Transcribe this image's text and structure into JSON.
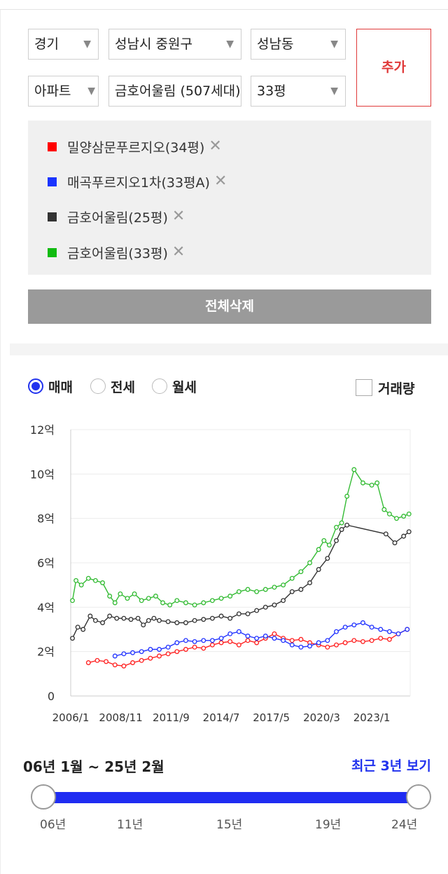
{
  "filters": {
    "region": "경기",
    "city": "성남시 중원구",
    "dong": "성남동",
    "type": "아파트",
    "complex": "금호어울림 (507세대)",
    "size": "33평",
    "add_label": "추가"
  },
  "selected": [
    {
      "label": "밀양삼문푸르지오(34평)",
      "color": "#ff0000"
    },
    {
      "label": "매곡푸르지오1차(33평A)",
      "color": "#1a34ff"
    },
    {
      "label": "금호어울림(25평)",
      "color": "#333333"
    },
    {
      "label": "금호어울림(33평)",
      "color": "#11bb11"
    }
  ],
  "delete_all_label": "전체삭제",
  "trade_types": [
    "매매",
    "전세",
    "월세"
  ],
  "active_trade": "매매",
  "volume_label": "거래량",
  "chart_data": {
    "type": "line",
    "ylim": [
      0,
      12
    ],
    "yticks": [
      "0",
      "2억",
      "4억",
      "6억",
      "8억",
      "10억",
      "12억"
    ],
    "xticks": [
      "2006/1",
      "2008/11",
      "2011/9",
      "2014/7",
      "2017/5",
      "2020/3",
      "2023/1"
    ],
    "xlim": [
      2006.0,
      2025.17
    ],
    "grid": true,
    "series": [
      {
        "name": "밀양삼문푸르지오(34평)",
        "color": "#ff2020",
        "x": [
          2007.0,
          2007.5,
          2008.0,
          2008.5,
          2009.0,
          2009.5,
          2010.0,
          2010.5,
          2011.0,
          2011.5,
          2012.0,
          2012.5,
          2013.0,
          2013.5,
          2014.0,
          2014.5,
          2015.0,
          2015.5,
          2016.0,
          2016.5,
          2017.0,
          2017.5,
          2018.0,
          2018.5,
          2019.0,
          2019.5,
          2020.0,
          2020.5,
          2021.0,
          2021.5,
          2022.0,
          2022.5,
          2023.0,
          2023.5,
          2024.0,
          2024.5,
          2025.0
        ],
        "y": [
          1.5,
          1.6,
          1.55,
          1.4,
          1.35,
          1.5,
          1.6,
          1.7,
          1.8,
          1.9,
          2.0,
          2.1,
          2.2,
          2.15,
          2.3,
          2.4,
          2.45,
          2.3,
          2.5,
          2.4,
          2.6,
          2.8,
          2.6,
          2.5,
          2.55,
          2.4,
          2.3,
          2.2,
          2.3,
          2.4,
          2.5,
          2.45,
          2.5,
          2.6,
          2.55,
          2.8,
          3.0
        ]
      },
      {
        "name": "매곡푸르지오1차(33평A)",
        "color": "#2233ff",
        "x": [
          2008.5,
          2009.0,
          2009.5,
          2010.0,
          2010.5,
          2011.0,
          2011.5,
          2012.0,
          2012.5,
          2013.0,
          2013.5,
          2014.0,
          2014.5,
          2015.0,
          2015.5,
          2016.0,
          2016.5,
          2017.0,
          2017.5,
          2018.0,
          2018.5,
          2019.0,
          2019.5,
          2020.0,
          2020.5,
          2021.0,
          2021.5,
          2022.0,
          2022.5,
          2023.0,
          2023.5,
          2024.0,
          2024.5,
          2025.0
        ],
        "y": [
          1.8,
          1.9,
          1.95,
          2.0,
          2.1,
          2.1,
          2.2,
          2.4,
          2.5,
          2.45,
          2.5,
          2.5,
          2.6,
          2.8,
          2.9,
          2.7,
          2.6,
          2.7,
          2.6,
          2.5,
          2.3,
          2.2,
          2.25,
          2.4,
          2.5,
          2.9,
          3.1,
          3.2,
          3.3,
          3.1,
          3.0,
          2.9,
          2.8,
          3.0
        ]
      },
      {
        "name": "금호어울림(25평)",
        "color": "#333333",
        "x": [
          2006.1,
          2006.4,
          2006.7,
          2007.1,
          2007.4,
          2007.8,
          2008.2,
          2008.6,
          2009.0,
          2009.4,
          2009.8,
          2010.1,
          2010.4,
          2010.7,
          2011.0,
          2011.5,
          2012.0,
          2012.5,
          2013.0,
          2013.5,
          2014.0,
          2014.5,
          2015.0,
          2015.5,
          2016.0,
          2016.5,
          2017.0,
          2017.5,
          2018.0,
          2018.5,
          2019.0,
          2019.5,
          2020.0,
          2020.5,
          2021.0,
          2021.3,
          2021.6,
          2023.8,
          2024.3,
          2024.8,
          2025.1
        ],
        "y": [
          2.6,
          3.1,
          3.0,
          3.6,
          3.4,
          3.3,
          3.6,
          3.5,
          3.5,
          3.45,
          3.5,
          3.2,
          3.4,
          3.5,
          3.4,
          3.35,
          3.3,
          3.3,
          3.4,
          3.45,
          3.5,
          3.6,
          3.5,
          3.7,
          3.7,
          3.85,
          4.0,
          4.1,
          4.3,
          4.7,
          4.8,
          5.1,
          5.7,
          6.2,
          7.0,
          7.5,
          7.7,
          7.3,
          6.9,
          7.2,
          7.4
        ]
      },
      {
        "name": "금호어울림(33평)",
        "color": "#33bb33",
        "x": [
          2006.1,
          2006.3,
          2006.6,
          2007.0,
          2007.4,
          2007.8,
          2008.2,
          2008.5,
          2008.8,
          2009.2,
          2009.6,
          2010.0,
          2010.4,
          2010.8,
          2011.2,
          2011.6,
          2012.0,
          2012.5,
          2013.0,
          2013.5,
          2014.0,
          2014.5,
          2015.0,
          2015.5,
          2016.0,
          2016.5,
          2017.0,
          2017.5,
          2018.0,
          2018.5,
          2019.0,
          2019.5,
          2020.0,
          2020.3,
          2020.6,
          2021.0,
          2021.3,
          2021.6,
          2022.0,
          2022.5,
          2023.0,
          2023.3,
          2023.7,
          2024.0,
          2024.4,
          2024.8,
          2025.1
        ],
        "y": [
          4.3,
          5.2,
          5.0,
          5.3,
          5.2,
          5.1,
          4.5,
          4.2,
          4.6,
          4.4,
          4.6,
          4.3,
          4.4,
          4.5,
          4.2,
          4.1,
          4.3,
          4.2,
          4.1,
          4.2,
          4.3,
          4.4,
          4.5,
          4.7,
          4.8,
          4.7,
          4.8,
          4.9,
          5.0,
          5.3,
          5.6,
          6.0,
          6.6,
          7.0,
          6.8,
          7.6,
          7.8,
          9.0,
          10.2,
          9.6,
          9.5,
          9.6,
          8.4,
          8.2,
          8.0,
          8.1,
          8.2
        ]
      }
    ]
  },
  "range_label": "06년 1월 ~ 25년 2월",
  "recent_label": "최근 3년 보기",
  "slider_years": [
    "06년",
    "11년",
    "15년",
    "19년",
    "24년"
  ]
}
